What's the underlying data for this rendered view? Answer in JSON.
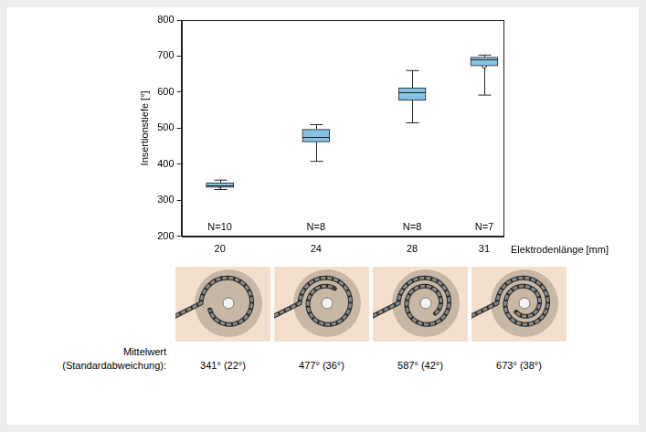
{
  "chart_data": {
    "type": "boxplot",
    "x_label": "Elektrodenlänge [mm]",
    "y_label": "Insertionstiefe [°]",
    "x": [
      20,
      24,
      28,
      31
    ],
    "xlim": [
      18.4,
      31.8
    ],
    "xticks": [
      20,
      24,
      28,
      31
    ],
    "ylim": [
      200,
      800
    ],
    "yticks": [
      200,
      300,
      400,
      500,
      600,
      700,
      800
    ],
    "grid": false,
    "color": "#84c3e6",
    "whisker_low": [
      330,
      408,
      515,
      592
    ],
    "q1": [
      336,
      462,
      577,
      673
    ],
    "median": [
      342,
      475,
      600,
      690
    ],
    "q3": [
      349,
      497,
      612,
      697
    ],
    "whisker_high": [
      356,
      510,
      660,
      703
    ],
    "means": [
      341,
      477,
      587,
      673
    ],
    "n_labels": [
      "N=10",
      "N=8",
      "N=8",
      "N=7"
    ],
    "footer_title": [
      "Mittelwert",
      "(Standardabweichung):"
    ],
    "mean_labels": [
      "341° (22°)",
      "477° (36°)",
      "587° (42°)",
      "673° (38°)"
    ]
  }
}
